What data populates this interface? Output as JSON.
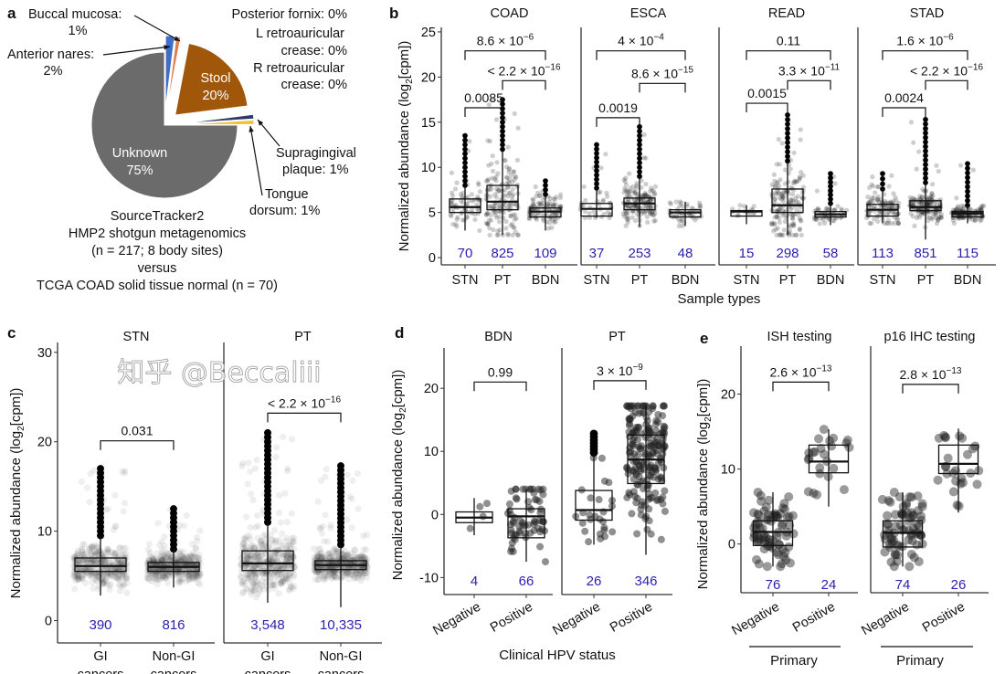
{
  "panel_letters": {
    "a": "a",
    "b": "b",
    "c": "c",
    "d": "d",
    "e": "e"
  },
  "watermark": "知乎 @Beccaliii",
  "colors": {
    "n_label": "#2a1fb0",
    "unknown": "#6b6b6b",
    "stool": "#a0570a",
    "anterior_nares": "#3f6fc4",
    "buccal_mucosa": "#e07b4a",
    "supragingival": "#f2c12e",
    "tongue": "#2a3a6a"
  },
  "chart_data": [
    {
      "panel": "a",
      "type": "pie",
      "slices": [
        {
          "label": "Anterior nares",
          "value": 2,
          "color": "#3f6fc4",
          "text": [
            "Anterior nares:",
            "2%"
          ]
        },
        {
          "label": "Buccal mucosa",
          "value": 1,
          "color": "#e07b4a",
          "text": [
            "Buccal mucosa:",
            "1%"
          ]
        },
        {
          "label": "Posterior fornix",
          "value": 0,
          "color": "#999999",
          "text": [
            "Posterior fornix: 0%"
          ]
        },
        {
          "label": "L retroauricular crease",
          "value": 0,
          "color": "#999999",
          "text": [
            "L retroauricular",
            "crease: 0%"
          ]
        },
        {
          "label": "R retroauricular crease",
          "value": 0,
          "color": "#999999",
          "text": [
            "R retroauricular",
            "crease: 0%"
          ]
        },
        {
          "label": "Stool",
          "value": 20,
          "color": "#a0570a",
          "text": [
            "Stool",
            "20%"
          ]
        },
        {
          "label": "Tongue dorsum",
          "value": 1,
          "color": "#2a3a6a",
          "text": [
            "Tongue",
            "dorsum: 1%"
          ]
        },
        {
          "label": "Supragingival plaque",
          "value": 1,
          "color": "#f2c12e",
          "text": [
            "Supragingival",
            "plaque: 1%"
          ]
        },
        {
          "label": "Unknown",
          "value": 75,
          "color": "#6b6b6b",
          "text": [
            "Unknown",
            "75%"
          ]
        }
      ],
      "caption": [
        "SourceTracker2",
        "HMP2 shotgun metagenomics",
        "(n = 217; 8 body sites)",
        "versus",
        "TCGA COAD solid tissue normal (n = 70)"
      ]
    },
    {
      "panel": "b",
      "type": "box",
      "ylabel": {
        "pre": "Normalized abundance (log",
        "sub": "2",
        "post": "[cpm])"
      },
      "xlabel": "Sample types",
      "ylim": [
        -0.8,
        25.5
      ],
      "yticks": [
        0,
        5,
        10,
        15,
        20,
        25
      ],
      "facets": [
        {
          "title": "COAD",
          "groups": [
            {
              "label": "STN",
              "n": "70",
              "wlo": 3,
              "q1": 5.0,
              "med": 5.6,
              "q3": 6.5,
              "whi": 8,
              "max": 13.5
            },
            {
              "label": "PT",
              "n": "825",
              "wlo": 2.5,
              "q1": 5.3,
              "med": 6.2,
              "q3": 8.0,
              "whi": 12,
              "max": 17.5
            },
            {
              "label": "BDN",
              "n": "109",
              "wlo": 3,
              "q1": 4.5,
              "med": 5.1,
              "q3": 5.5,
              "whi": 7,
              "max": 8.5
            }
          ],
          "comparisons": [
            {
              "a": 0,
              "b": 2,
              "y": 22.9,
              "p": {
                "base": "8.6 × 10",
                "exp": "−6"
              }
            },
            {
              "a": 1,
              "b": 2,
              "y": 19.6,
              "p": {
                "base": "< 2.2 × 10",
                "exp": "−16"
              }
            },
            {
              "a": 0,
              "b": 1,
              "y": 16.6,
              "p": {
                "base": "0.0085",
                "exp": ""
              }
            }
          ]
        },
        {
          "title": "ESCA",
          "groups": [
            {
              "label": "STN",
              "n": "37",
              "wlo": 4.4,
              "q1": 4.6,
              "med": 5.4,
              "q3": 6.0,
              "whi": 7.7,
              "max": 12.5
            },
            {
              "label": "PT",
              "n": "253",
              "wlo": 3.4,
              "q1": 5.3,
              "med": 6.0,
              "q3": 6.6,
              "whi": 9,
              "max": 14.5
            },
            {
              "label": "BDN",
              "n": "48",
              "wlo": 3.5,
              "q1": 4.5,
              "med": 5.0,
              "q3": 5.3,
              "whi": 6.2,
              "max": 6.2
            }
          ],
          "comparisons": [
            {
              "a": 0,
              "b": 2,
              "y": 22.9,
              "p": {
                "base": "4 × 10",
                "exp": "−4"
              }
            },
            {
              "a": 1,
              "b": 2,
              "y": 19.3,
              "p": {
                "base": "8.6 × 10",
                "exp": "−15"
              }
            },
            {
              "a": 0,
              "b": 1,
              "y": 15.5,
              "p": {
                "base": "0.0019",
                "exp": ""
              }
            }
          ]
        },
        {
          "title": "READ",
          "groups": [
            {
              "label": "STN",
              "n": "15",
              "wlo": 3.7,
              "q1": 4.6,
              "med": 5.1,
              "q3": 5.2,
              "whi": 5.8,
              "max": 5.8
            },
            {
              "label": "PT",
              "n": "298",
              "wlo": 2.5,
              "q1": 5.0,
              "med": 5.8,
              "q3": 7.6,
              "whi": 10.7,
              "max": 15.8
            },
            {
              "label": "BDN",
              "n": "58",
              "wlo": 3.6,
              "q1": 4.5,
              "med": 4.8,
              "q3": 5.1,
              "whi": 6,
              "max": 9.3
            }
          ],
          "comparisons": [
            {
              "a": 0,
              "b": 2,
              "y": 22.9,
              "p": {
                "base": "0.11",
                "exp": ""
              }
            },
            {
              "a": 1,
              "b": 2,
              "y": 19.6,
              "p": {
                "base": "3.3 × 10",
                "exp": "−11"
              }
            },
            {
              "a": 0,
              "b": 1,
              "y": 17.1,
              "p": {
                "base": "0.0015",
                "exp": ""
              }
            }
          ]
        },
        {
          "title": "STAD",
          "groups": [
            {
              "label": "STN",
              "n": "113",
              "wlo": 3.8,
              "q1": 4.6,
              "med": 5.3,
              "q3": 5.9,
              "whi": 7.6,
              "max": 9.3
            },
            {
              "label": "PT",
              "n": "851",
              "wlo": 2,
              "q1": 5.2,
              "med": 5.6,
              "q3": 6.3,
              "whi": 8.3,
              "max": 15.3
            },
            {
              "label": "BDN",
              "n": "115",
              "wlo": 3.8,
              "q1": 4.5,
              "med": 4.9,
              "q3": 5.1,
              "whi": 5.8,
              "max": 10.4
            }
          ],
          "comparisons": [
            {
              "a": 0,
              "b": 2,
              "y": 22.9,
              "p": {
                "base": "1.6 × 10",
                "exp": "−6"
              }
            },
            {
              "a": 1,
              "b": 2,
              "y": 19.6,
              "p": {
                "base": "< 2.2 × 10",
                "exp": "−16"
              }
            },
            {
              "a": 0,
              "b": 1,
              "y": 16.6,
              "p": {
                "base": "0.0024",
                "exp": ""
              }
            }
          ]
        }
      ]
    },
    {
      "panel": "c",
      "type": "box",
      "ylabel": {
        "pre": "Normalized abundance (log",
        "sub": "2",
        "post": "[cpm])"
      },
      "ylim": [
        -2.5,
        31.1
      ],
      "yticks": [
        0,
        10,
        20,
        30
      ],
      "facets": [
        {
          "title": "STN",
          "groups": [
            {
              "label": "GI",
              "label2": "cancers",
              "n": "390",
              "wlo": 2.8,
              "q1": 5.5,
              "med": 6.1,
              "q3": 7.0,
              "whi": 9.5,
              "max": 17
            },
            {
              "label": "Non-GI",
              "label2": "cancers",
              "n": "816",
              "wlo": 3.7,
              "q1": 5.5,
              "med": 6.0,
              "q3": 6.5,
              "whi": 8,
              "max": 12.5
            }
          ],
          "comparisons": [
            {
              "a": 0,
              "b": 1,
              "y": 20.1,
              "p": {
                "base": "0.031",
                "exp": ""
              }
            }
          ]
        },
        {
          "title": "PT",
          "groups": [
            {
              "label": "GI",
              "label2": "cancers",
              "n": "3,548",
              "wlo": 2,
              "q1": 5.6,
              "med": 6.4,
              "q3": 7.8,
              "whi": 11,
              "max": 21
            },
            {
              "label": "Non-GI",
              "label2": "cancers",
              "n": "10,335",
              "wlo": 1.5,
              "q1": 5.7,
              "med": 6.2,
              "q3": 6.7,
              "whi": 8.5,
              "max": 17.3
            }
          ],
          "comparisons": [
            {
              "a": 0,
              "b": 1,
              "y": 23.2,
              "p": {
                "base": "< 2.2 × 10",
                "exp": "−16"
              }
            }
          ]
        }
      ]
    },
    {
      "panel": "d",
      "type": "box",
      "ylabel": {
        "pre": "Normalized abundance (log",
        "sub": "2",
        "post": "[cpm])"
      },
      "xlabel": "Clinical HPV status",
      "ylim": [
        -12.7,
        26.4
      ],
      "yticks": [
        -10,
        0,
        10,
        20
      ],
      "facets": [
        {
          "title": "BDN",
          "groups": [
            {
              "label": "Negative",
              "n": "4",
              "wlo": -3.3,
              "q1": -1.3,
              "med": -0.5,
              "q3": 0.4,
              "whi": 2.6,
              "max": 2.6
            },
            {
              "label": "Positive",
              "n": "66",
              "wlo": -7.5,
              "q1": -3.7,
              "med": -0.3,
              "q3": 0.9,
              "whi": 4,
              "max": 4
            }
          ],
          "comparisons": [
            {
              "a": 0,
              "b": 1,
              "y": 21,
              "p": {
                "base": "0.99",
                "exp": ""
              }
            }
          ]
        },
        {
          "title": "PT",
          "groups": [
            {
              "label": "Negative",
              "n": "26",
              "wlo": -4.8,
              "q1": -0.9,
              "med": 0.7,
              "q3": 3.8,
              "whi": 9.8,
              "max": 12.8
            },
            {
              "label": "Positive",
              "n": "346",
              "wlo": -6.4,
              "q1": 4.9,
              "med": 8.7,
              "q3": 12.6,
              "whi": 17.2,
              "max": 17.2
            }
          ],
          "comparisons": [
            {
              "a": 0,
              "b": 1,
              "y": 21.2,
              "p": {
                "base": "3 × 10",
                "exp": "−9"
              }
            }
          ]
        }
      ]
    },
    {
      "panel": "e",
      "type": "box",
      "ylabel": {
        "pre": "Normalized abundance (log",
        "sub": "2",
        "post": "[cpm])"
      },
      "ylim": [
        -6.5,
        26.4
      ],
      "yticks": [
        0,
        10,
        20
      ],
      "group_caption": "Primary",
      "facets": [
        {
          "title": "ISH testing",
          "groups": [
            {
              "label": "Negative",
              "n": "76",
              "wlo": -3,
              "q1": -0.2,
              "med": 1.6,
              "q3": 3.1,
              "whi": 6.9,
              "max": 6.9
            },
            {
              "label": "Positive",
              "n": "24",
              "wlo": 5,
              "q1": 9.5,
              "med": 11.0,
              "q3": 13.2,
              "whi": 15.3,
              "max": 15.3
            }
          ],
          "comparisons": [
            {
              "a": 0,
              "b": 1,
              "y": 21.6,
              "p": {
                "base": "2.6 × 10",
                "exp": "−13"
              }
            }
          ]
        },
        {
          "title": "p16 IHC testing",
          "groups": [
            {
              "label": "Negative",
              "n": "74",
              "wlo": -3,
              "q1": -0.4,
              "med": 1.5,
              "q3": 3.1,
              "whi": 6.9,
              "max": 6.9
            },
            {
              "label": "Positive",
              "n": "26",
              "wlo": 4.2,
              "q1": 9.4,
              "med": 10.7,
              "q3": 13.2,
              "whi": 15.4,
              "max": 15.4
            }
          ],
          "comparisons": [
            {
              "a": 0,
              "b": 1,
              "y": 21.3,
              "p": {
                "base": "2.8 × 10",
                "exp": "−13"
              }
            }
          ]
        }
      ]
    }
  ]
}
